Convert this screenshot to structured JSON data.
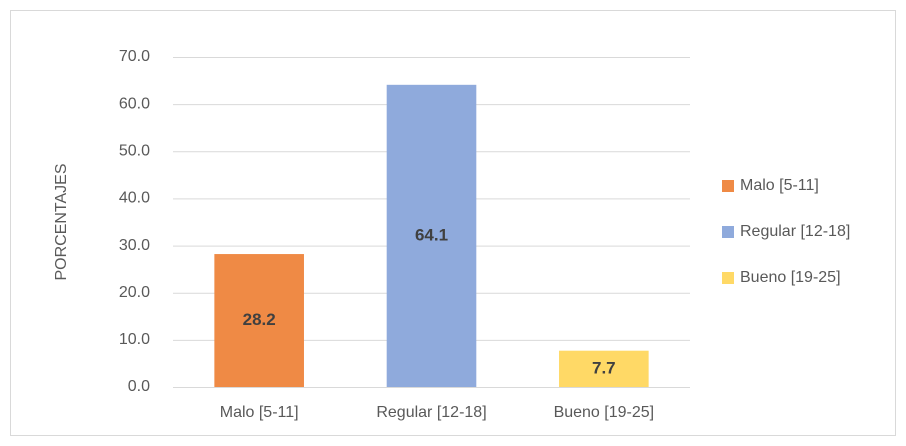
{
  "chart_data": {
    "type": "bar",
    "y_axis_label": "PORCENTAJES",
    "categories": [
      "Malo [5-11]",
      "Regular [12-18]",
      "Bueno [19-25]"
    ],
    "values": [
      28.2,
      64.1,
      7.7
    ],
    "colors": [
      "#ef8a45",
      "#8faadc",
      "#ffd966"
    ],
    "ylim": [
      0,
      70
    ],
    "yticks": [
      {
        "value": 0,
        "label": "0.0"
      },
      {
        "value": 10,
        "label": "10.0"
      },
      {
        "value": 20,
        "label": "20.0"
      },
      {
        "value": 30,
        "label": "30.0"
      },
      {
        "value": 40,
        "label": "40.0"
      },
      {
        "value": 50,
        "label": "50.0"
      },
      {
        "value": 60,
        "label": "60.0"
      },
      {
        "value": 70,
        "label": "70.0"
      }
    ],
    "grid": true,
    "legend": "right"
  }
}
